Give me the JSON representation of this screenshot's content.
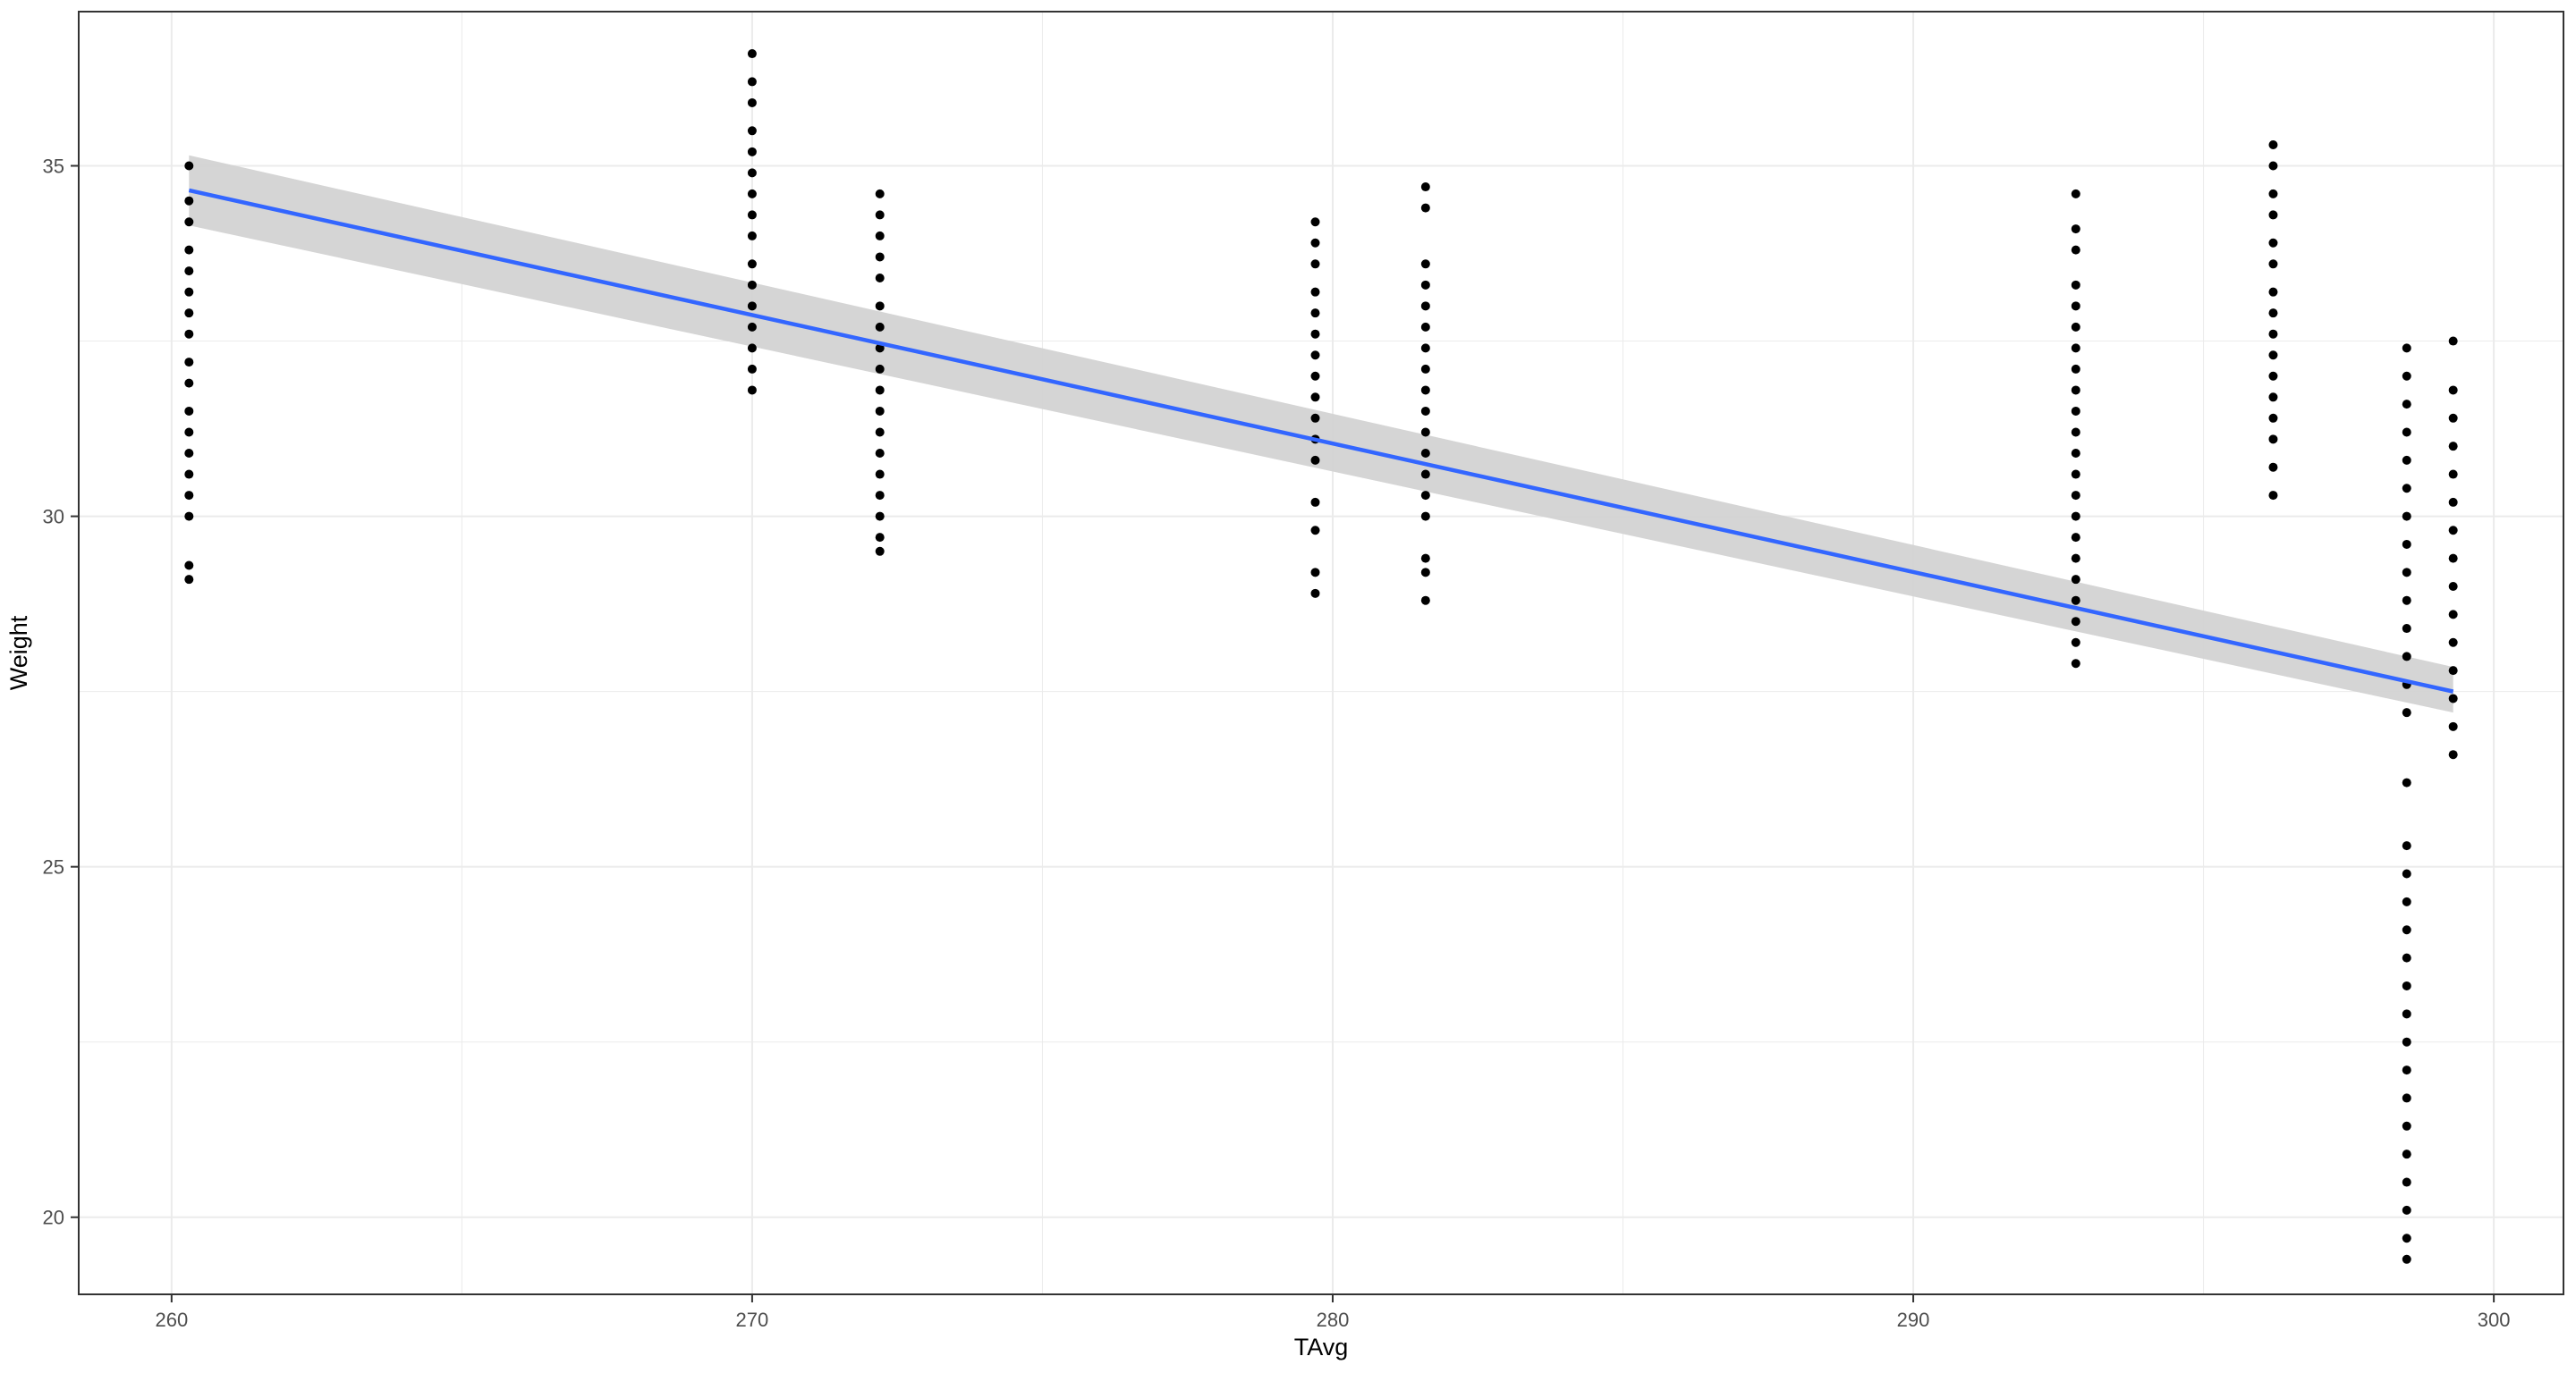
{
  "chart_data": {
    "type": "scatter",
    "xlabel": "TAvg",
    "ylabel": "Weight",
    "xlim": [
      258.4,
      301.2
    ],
    "ylim": [
      18.9,
      37.2
    ],
    "x_ticks": [
      260,
      270,
      280,
      290,
      300
    ],
    "x_tick_labels": [
      "260",
      "270",
      "280",
      "290",
      "300"
    ],
    "y_ticks": [
      20,
      25,
      30,
      35
    ],
    "y_tick_labels": [
      "20",
      "25",
      "30",
      "35"
    ],
    "grid": true,
    "legend": "none",
    "colors": {
      "points": "#000000",
      "line": "#3366ff",
      "band": "#d3d3d3",
      "grid": "#ebebeb",
      "panel_border": "#333333"
    },
    "groups": [
      {
        "x": 260.3,
        "y": [
          35.0,
          34.5,
          34.2,
          33.8,
          33.5,
          33.2,
          32.9,
          32.6,
          32.2,
          31.9,
          31.5,
          31.2,
          30.9,
          30.6,
          30.3,
          30.0,
          29.3,
          29.1
        ]
      },
      {
        "x": 270.0,
        "y": [
          36.6,
          36.2,
          35.9,
          35.5,
          35.2,
          34.9,
          34.6,
          34.3,
          34.0,
          33.6,
          33.3,
          33.0,
          32.7,
          32.4,
          32.1,
          31.8
        ]
      },
      {
        "x": 272.2,
        "y": [
          34.6,
          34.3,
          34.0,
          33.7,
          33.4,
          33.0,
          32.7,
          32.4,
          32.1,
          31.8,
          31.5,
          31.2,
          30.9,
          30.6,
          30.3,
          30.0,
          29.7,
          29.5
        ]
      },
      {
        "x": 279.7,
        "y": [
          34.2,
          33.9,
          33.6,
          33.2,
          32.9,
          32.6,
          32.3,
          32.0,
          31.7,
          31.4,
          31.1,
          30.8,
          30.2,
          29.8,
          29.2,
          28.9
        ]
      },
      {
        "x": 281.6,
        "y": [
          34.7,
          34.4,
          33.6,
          33.3,
          33.0,
          32.7,
          32.4,
          32.1,
          31.8,
          31.5,
          31.2,
          30.9,
          30.6,
          30.3,
          30.0,
          29.4,
          29.2,
          28.8
        ]
      },
      {
        "x": 292.8,
        "y": [
          34.6,
          34.1,
          33.8,
          33.3,
          33.0,
          32.7,
          32.4,
          32.1,
          31.8,
          31.5,
          31.2,
          30.9,
          30.6,
          30.3,
          30.0,
          29.7,
          29.4,
          29.1,
          28.8,
          28.5,
          28.2,
          27.9
        ]
      },
      {
        "x": 296.2,
        "y": [
          35.3,
          35.0,
          34.6,
          34.3,
          33.9,
          33.6,
          33.2,
          32.9,
          32.6,
          32.3,
          32.0,
          31.7,
          31.4,
          31.1,
          30.7,
          30.3
        ]
      },
      {
        "x": 298.5,
        "y": [
          32.4,
          32.0,
          31.6,
          31.2,
          30.8,
          30.4,
          30.0,
          29.6,
          29.2,
          28.8,
          28.4,
          28.0,
          27.6,
          27.2,
          26.2,
          25.3,
          24.9,
          24.5,
          24.1,
          23.7,
          23.3,
          22.9,
          22.5,
          22.1,
          21.7,
          21.3,
          20.9,
          20.5,
          20.1,
          19.7,
          19.4
        ]
      },
      {
        "x": 299.3,
        "y": [
          32.5,
          31.8,
          31.4,
          31.0,
          30.6,
          30.2,
          29.8,
          29.4,
          29.0,
          28.6,
          28.2,
          27.8,
          27.4,
          27.0,
          26.6
        ]
      }
    ],
    "fit_line": {
      "x": [
        260.3,
        299.3
      ],
      "y": [
        34.65,
        27.5
      ],
      "band_upper": [
        35.15,
        27.85
      ],
      "band_lower": [
        34.15,
        27.2
      ]
    }
  }
}
